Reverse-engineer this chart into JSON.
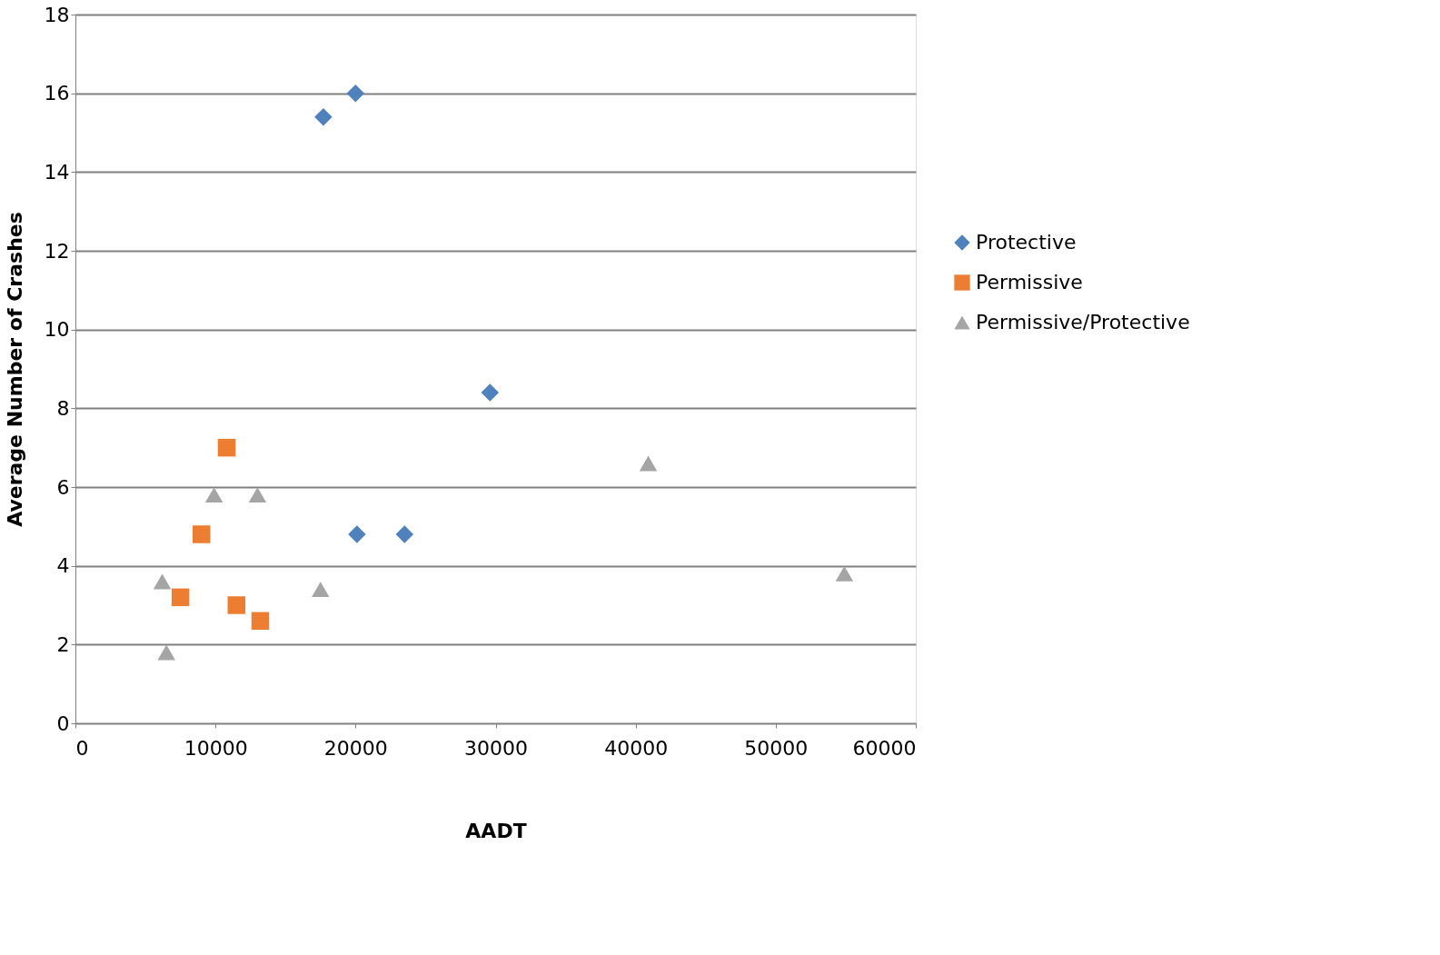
{
  "chart_data": {
    "type": "scatter",
    "xlabel": "AADT",
    "ylabel": "Average Number of Crashes",
    "xlim": [
      0,
      60000
    ],
    "xticks": [
      0,
      10000,
      20000,
      30000,
      40000,
      50000,
      60000
    ],
    "ylim": [
      0,
      18
    ],
    "yticks": [
      0,
      2,
      4,
      6,
      8,
      10,
      12,
      14,
      16,
      18
    ],
    "grid": "y",
    "legend": "right",
    "series": [
      {
        "name": "Protective",
        "color": "#4f81bd",
        "marker": "diamond",
        "x": [
          17700,
          20000,
          29600,
          20100,
          23500
        ],
        "values": [
          15.4,
          16.0,
          8.4,
          4.8,
          4.8
        ]
      },
      {
        "name": "Permissive",
        "color": "#ed7d31",
        "marker": "square",
        "x": [
          10800,
          9000,
          7500,
          11500,
          13200
        ],
        "values": [
          7.0,
          4.8,
          3.2,
          3.0,
          2.6
        ]
      },
      {
        "name": "Permissive/Protective",
        "color": "#a5a5a5",
        "marker": "triangle",
        "x": [
          6200,
          6500,
          9900,
          13000,
          17500,
          40900,
          54900
        ],
        "values": [
          3.6,
          1.8,
          5.8,
          5.8,
          3.4,
          6.6,
          3.8
        ]
      }
    ]
  }
}
